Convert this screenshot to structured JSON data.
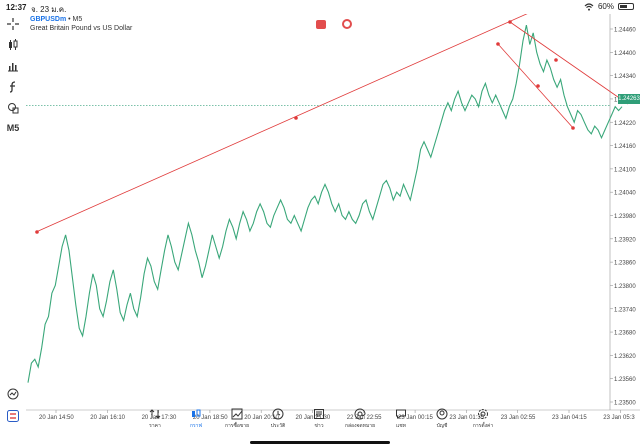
{
  "status": {
    "time": "12:37",
    "date": "จ. 23 ม.ค.",
    "battery": "60%",
    "battery_level": 0.6
  },
  "chart": {
    "symbol": "GBPUSDm",
    "separator": " • ",
    "timeframe": "M5",
    "description": "Great Britain Pound vs US Dollar",
    "current_price": "1.24263",
    "toolbar_timeframe": "M5"
  },
  "chart_data": {
    "type": "line",
    "title": "",
    "ylabels": [
      "1.24460",
      "1.24400",
      "1.24340",
      "1.24280",
      "1.24220",
      "1.24160",
      "1.24100",
      "1.24040",
      "1.23980",
      "1.23920",
      "1.23860",
      "1.23800",
      "1.23740",
      "1.23680",
      "1.23620",
      "1.23560",
      "1.23500"
    ],
    "xlabels": [
      "20 Jan 14:50",
      "20 Jan 16:10",
      "20 Jan 17:30",
      "20 Jan 18:50",
      "20 Jan 20:10",
      "20 Jan 21:30",
      "22 Jan 22:55",
      "23 Jan 00:15",
      "23 Jan 01:35",
      "23 Jan 02:55",
      "23 Jan 04:15",
      "23 Jan 05:3"
    ],
    "ylim": [
      1.2347,
      1.245
    ],
    "series": [
      {
        "values": [
          1.2355,
          1.236,
          1.2361,
          1.2359,
          1.2364,
          1.237,
          1.2372,
          1.2378,
          1.238,
          1.2385,
          1.239,
          1.2393,
          1.2389,
          1.2382,
          1.2375,
          1.2369,
          1.2367,
          1.2372,
          1.2378,
          1.2383,
          1.238,
          1.2374,
          1.2372,
          1.2376,
          1.2381,
          1.2384,
          1.2379,
          1.2373,
          1.2371,
          1.2375,
          1.2378,
          1.2374,
          1.2372,
          1.2377,
          1.2383,
          1.2387,
          1.2385,
          1.2381,
          1.2379,
          1.2384,
          1.2389,
          1.2393,
          1.239,
          1.2386,
          1.2384,
          1.2388,
          1.2392,
          1.2396,
          1.2393,
          1.2389,
          1.2386,
          1.2382,
          1.2385,
          1.2389,
          1.2393,
          1.239,
          1.2387,
          1.239,
          1.2394,
          1.2397,
          1.2395,
          1.2392,
          1.2396,
          1.2399,
          1.2397,
          1.2394,
          1.2396,
          1.2399,
          1.2401,
          1.2399,
          1.2396,
          1.2395,
          1.2398,
          1.24,
          1.2402,
          1.24,
          1.2397,
          1.2396,
          1.2398,
          1.2396,
          1.2394,
          1.2397,
          1.24,
          1.2402,
          1.2403,
          1.2401,
          1.2404,
          1.2406,
          1.2404,
          1.2401,
          1.2399,
          1.2401,
          1.2398,
          1.2397,
          1.2399,
          1.2397,
          1.2396,
          1.2398,
          1.2401,
          1.2402,
          1.2399,
          1.2397,
          1.24,
          1.2403,
          1.2406,
          1.2407,
          1.2405,
          1.2402,
          1.2404,
          1.2403,
          1.2406,
          1.2404,
          1.2402,
          1.2406,
          1.241,
          1.2415,
          1.2417,
          1.2415,
          1.2413,
          1.2416,
          1.2419,
          1.2422,
          1.2425,
          1.2427,
          1.2425,
          1.2428,
          1.243,
          1.2427,
          1.2425,
          1.2427,
          1.2429,
          1.2428,
          1.2426,
          1.243,
          1.2432,
          1.2429,
          1.2427,
          1.2429,
          1.2427,
          1.2425,
          1.2423,
          1.2426,
          1.2428,
          1.2432,
          1.2437,
          1.2443,
          1.2447,
          1.2442,
          1.2445,
          1.244,
          1.2437,
          1.2435,
          1.2438,
          1.2436,
          1.2433,
          1.2431,
          1.2433,
          1.2429,
          1.2426,
          1.2424,
          1.2422,
          1.2425,
          1.2424,
          1.2422,
          1.242,
          1.2419,
          1.2421,
          1.242,
          1.2418,
          1.242,
          1.2422,
          1.2424,
          1.2426,
          1.2425,
          1.2426
        ]
      }
    ]
  },
  "nav": {
    "items": [
      {
        "label": "ราคา",
        "icon": "quotes-icon"
      },
      {
        "label": "กราฟ",
        "icon": "chart-icon",
        "active": true
      },
      {
        "label": "การซื้อขาย",
        "icon": "trade-icon"
      },
      {
        "label": "ประวัติ",
        "icon": "history-icon"
      },
      {
        "label": "ข่าว",
        "icon": "news-icon"
      },
      {
        "label": "กล่องจดหมาย",
        "icon": "mailbox-icon"
      },
      {
        "label": "แชท",
        "icon": "chat-icon"
      },
      {
        "label": "บัญชี",
        "icon": "account-icon"
      },
      {
        "label": "การตั้งค่า",
        "icon": "settings-icon"
      }
    ]
  },
  "colors": {
    "line": "#3aa77a",
    "trend": "#e03a3a",
    "current": "#2f9e78",
    "accent": "#1a73e8"
  }
}
